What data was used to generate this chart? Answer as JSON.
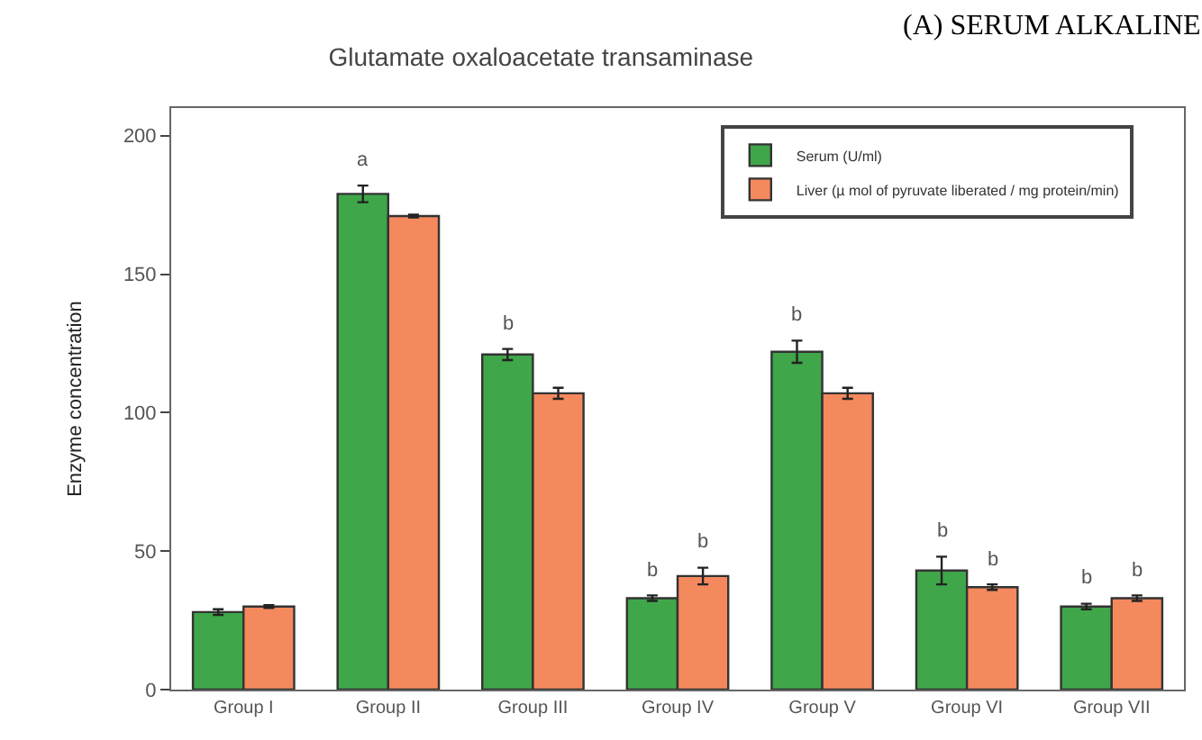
{
  "chart_data": {
    "type": "bar",
    "title": "Glutamate oxaloacetate transaminase",
    "ylabel": "Enzyme concentration",
    "categories": [
      "Group I",
      "Group II",
      "Group III",
      "Group IV",
      "Group V",
      "Group VI",
      "Group VII"
    ],
    "series": [
      {
        "name": "Serum (U/ml)",
        "color": "#3fa64a",
        "values": [
          28,
          179,
          121,
          33,
          122,
          43,
          30
        ],
        "errors": [
          1,
          3,
          2,
          1,
          4,
          5,
          1
        ]
      },
      {
        "name": "Liver (µ mol of pyruvate liberated / mg protein/min)",
        "color": "#f5895e",
        "values": [
          30,
          171,
          107,
          41,
          107,
          37,
          33
        ],
        "errors": [
          0.5,
          0.5,
          2,
          3,
          2,
          1,
          1
        ]
      }
    ],
    "ylim": [
      0,
      210
    ],
    "yticks": [
      0,
      50,
      100,
      150,
      200
    ],
    "grid": false,
    "legend": "top right",
    "annotations": [
      {
        "text": "a",
        "x": "Group II",
        "y": 179
      },
      {
        "text": "b",
        "x": "Group III",
        "y": 121
      },
      {
        "text": "b",
        "x": "Group IV",
        "y": 33
      },
      {
        "text": "b",
        "x": "Group IV",
        "y": 41
      },
      {
        "text": "b",
        "x": "Group V",
        "y": 122
      },
      {
        "text": "b",
        "x": "Group VI",
        "y": 43
      },
      {
        "text": "b",
        "x": "Group VI",
        "y": 37
      },
      {
        "text": "b",
        "x": "Group VII",
        "y": 30
      },
      {
        "text": "b",
        "x": "Group VII",
        "y": 33
      },
      "(A) SERUM ALKALINE"
    ]
  }
}
